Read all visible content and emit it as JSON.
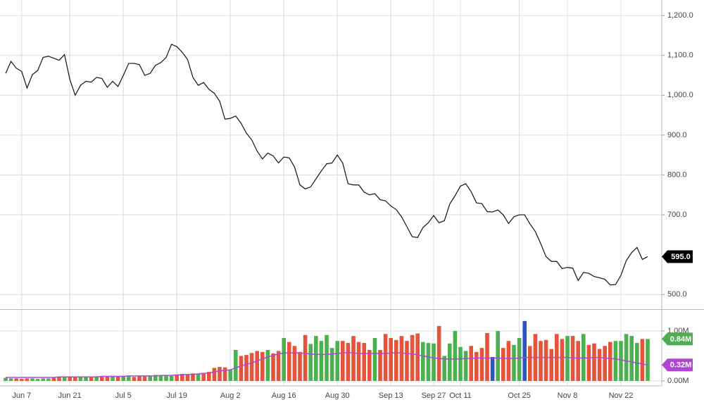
{
  "chart_data": {
    "type": "stock",
    "categories": [
      null,
      null,
      null,
      "Jun 7",
      null,
      null,
      null,
      null,
      null,
      null,
      null,
      null,
      "Jun 21",
      null,
      null,
      null,
      null,
      null,
      null,
      null,
      null,
      null,
      "Jul 5",
      null,
      null,
      null,
      null,
      null,
      null,
      null,
      null,
      null,
      "Jul 19",
      null,
      null,
      null,
      null,
      null,
      null,
      null,
      null,
      null,
      "Aug 2",
      null,
      null,
      null,
      null,
      null,
      null,
      null,
      null,
      null,
      "Aug 16",
      null,
      null,
      null,
      null,
      null,
      null,
      null,
      null,
      null,
      "Aug 30",
      null,
      null,
      null,
      null,
      null,
      null,
      null,
      null,
      null,
      "Sep 13",
      null,
      null,
      null,
      null,
      null,
      null,
      null,
      "Sep 27",
      null,
      null,
      null,
      null,
      "Oct 11",
      null,
      null,
      null,
      null,
      null,
      null,
      null,
      null,
      null,
      null,
      "Oct 25",
      null,
      null,
      null,
      null,
      null,
      null,
      null,
      null,
      "Nov 8",
      null,
      null,
      null,
      null,
      null,
      null,
      null,
      null,
      null,
      "Nov 22",
      null,
      null,
      null,
      null,
      null
    ],
    "price": {
      "color": "#111111",
      "ylim": [
        465,
        1225
      ],
      "yticks": [
        {
          "value": 500,
          "label": "500.0"
        },
        {
          "value": 700,
          "label": "700.0"
        },
        {
          "value": 800,
          "label": "800.0"
        },
        {
          "value": 900,
          "label": "900.0"
        },
        {
          "value": 1000,
          "label": "1,000.0"
        },
        {
          "value": 1100,
          "label": "1,100.0"
        },
        {
          "value": 1200,
          "label": "1,200.0"
        }
      ],
      "last_label": {
        "value": 595,
        "label": "595.0",
        "color": "#000000"
      },
      "values": [
        1055,
        1085,
        1068,
        1060,
        1018,
        1052,
        1062,
        1095,
        1098,
        1093,
        1088,
        1102,
        1040,
        1000,
        1025,
        1035,
        1033,
        1045,
        1042,
        1020,
        1035,
        1022,
        1050,
        1080,
        1080,
        1077,
        1050,
        1055,
        1075,
        1082,
        1095,
        1128,
        1122,
        1108,
        1090,
        1045,
        1025,
        1032,
        1015,
        1005,
        985,
        940,
        942,
        948,
        930,
        905,
        888,
        860,
        840,
        855,
        848,
        830,
        845,
        843,
        820,
        775,
        765,
        770,
        790,
        810,
        828,
        830,
        850,
        830,
        778,
        775,
        775,
        757,
        750,
        753,
        738,
        735,
        722,
        713,
        695,
        670,
        645,
        643,
        668,
        680,
        698,
        680,
        685,
        727,
        748,
        772,
        778,
        758,
        730,
        728,
        708,
        707,
        712,
        700,
        678,
        695,
        700,
        700,
        677,
        658,
        628,
        595,
        583,
        583,
        565,
        568,
        566,
        535,
        555,
        553,
        545,
        542,
        538,
        524,
        525,
        548,
        585,
        605,
        618,
        588,
        595
      ]
    },
    "volume": {
      "ylim": [
        -0.1,
        1.41
      ],
      "yticks": [
        {
          "value": 0,
          "label": "0.00M"
        },
        {
          "value": 1,
          "label": "1.00M"
        }
      ],
      "last_label": {
        "value": 0.84,
        "label": "0.84M",
        "color": "#4caf50"
      },
      "values": [
        0.06,
        0.05,
        0.05,
        0.04,
        0.05,
        0.05,
        0.04,
        0.05,
        0.05,
        0.06,
        0.07,
        0.08,
        0.07,
        0.08,
        0.08,
        0.07,
        0.08,
        0.09,
        0.08,
        0.09,
        0.1,
        0.09,
        0.1,
        0.09,
        0.08,
        0.1,
        0.09,
        0.11,
        0.12,
        0.1,
        0.11,
        0.1,
        0.12,
        0.14,
        0.13,
        0.15,
        0.14,
        0.16,
        0.18,
        0.26,
        0.28,
        0.27,
        0.22,
        0.62,
        0.5,
        0.52,
        0.56,
        0.6,
        0.58,
        0.62,
        0.55,
        0.6,
        0.86,
        0.78,
        0.7,
        0.58,
        0.92,
        0.74,
        0.9,
        0.8,
        0.92,
        0.66,
        0.8,
        0.8,
        0.76,
        0.9,
        0.78,
        0.76,
        0.62,
        0.86,
        0.62,
        0.94,
        0.86,
        0.82,
        0.9,
        0.8,
        0.92,
        0.95,
        0.78,
        0.76,
        0.75,
        1.1,
        0.5,
        0.75,
        1.0,
        0.68,
        0.6,
        0.7,
        0.58,
        0.66,
        0.96,
        0.48,
        1.0,
        0.66,
        0.8,
        0.72,
        0.86,
        1.2,
        0.7,
        0.94,
        0.8,
        0.82,
        0.64,
        0.94,
        0.84,
        0.9,
        0.9,
        0.8,
        0.94,
        0.72,
        0.75,
        0.64,
        0.7,
        0.78,
        0.8,
        0.8,
        0.94,
        0.9,
        0.76,
        0.84,
        0.84
      ],
      "colors": [
        "#4caf50",
        "#4caf50",
        "#e5533b",
        "#e5533b",
        "#e5533b",
        "#4caf50",
        "#4caf50",
        "#4caf50",
        "#4caf50",
        "#e5533b",
        "#e5533b",
        "#4caf50",
        "#e5533b",
        "#e5533b",
        "#4caf50",
        "#4caf50",
        "#e5533b",
        "#4caf50",
        "#e5533b",
        "#e5533b",
        "#4caf50",
        "#e5533b",
        "#4caf50",
        "#4caf50",
        "#e5533b",
        "#e5533b",
        "#e5533b",
        "#4caf50",
        "#4caf50",
        "#4caf50",
        "#4caf50",
        "#4caf50",
        "#e5533b",
        "#e5533b",
        "#e5533b",
        "#e5533b",
        "#4caf50",
        "#e5533b",
        "#e5533b",
        "#e5533b",
        "#e5533b",
        "#e5533b",
        "#4caf50",
        "#4caf50",
        "#e5533b",
        "#e5533b",
        "#e5533b",
        "#e5533b",
        "#e5533b",
        "#4caf50",
        "#e5533b",
        "#e5533b",
        "#4caf50",
        "#e5533b",
        "#e5533b",
        "#e5533b",
        "#e5533b",
        "#4caf50",
        "#4caf50",
        "#4caf50",
        "#4caf50",
        "#4caf50",
        "#4caf50",
        "#e5533b",
        "#e5533b",
        "#e5533b",
        "#e5533b",
        "#e5533b",
        "#e5533b",
        "#4caf50",
        "#e5533b",
        "#e5533b",
        "#e5533b",
        "#e5533b",
        "#e5533b",
        "#e5533b",
        "#e5533b",
        "#e5533b",
        "#4caf50",
        "#4caf50",
        "#4caf50",
        "#e5533b",
        "#4caf50",
        "#4caf50",
        "#4caf50",
        "#4caf50",
        "#4caf50",
        "#e5533b",
        "#e5533b",
        "#e5533b",
        "#e5533b",
        "#2d55c6",
        "#4caf50",
        "#e5533b",
        "#e5533b",
        "#4caf50",
        "#4caf50",
        "#2d55c6",
        "#e5533b",
        "#e5533b",
        "#e5533b",
        "#e5533b",
        "#e5533b",
        "#e5533b",
        "#e5533b",
        "#4caf50",
        "#e5533b",
        "#e5533b",
        "#4caf50",
        "#e5533b",
        "#e5533b",
        "#e5533b",
        "#e5533b",
        "#e5533b",
        "#4caf50",
        "#4caf50",
        "#4caf50",
        "#4caf50",
        "#4caf50",
        "#e5533b",
        "#4caf50"
      ]
    },
    "volume_ma": {
      "color": "#b146d6",
      "last_label": {
        "value": 0.32,
        "label": "0.32M"
      },
      "values": [
        0.07,
        0.07,
        0.07,
        0.07,
        0.07,
        0.07,
        0.07,
        0.07,
        0.07,
        0.07,
        0.08,
        0.08,
        0.08,
        0.08,
        0.08,
        0.08,
        0.08,
        0.08,
        0.09,
        0.09,
        0.09,
        0.09,
        0.09,
        0.1,
        0.1,
        0.1,
        0.1,
        0.1,
        0.1,
        0.11,
        0.11,
        0.11,
        0.12,
        0.12,
        0.13,
        0.13,
        0.14,
        0.15,
        0.16,
        0.18,
        0.2,
        0.21,
        0.22,
        0.26,
        0.3,
        0.33,
        0.36,
        0.4,
        0.44,
        0.48,
        0.51,
        0.54,
        0.56,
        0.56,
        0.56,
        0.56,
        0.55,
        0.54,
        0.53,
        0.53,
        0.53,
        0.54,
        0.55,
        0.56,
        0.57,
        0.56,
        0.55,
        0.55,
        0.55,
        0.55,
        0.55,
        0.55,
        0.56,
        0.56,
        0.56,
        0.55,
        0.54,
        0.52,
        0.5,
        0.48,
        0.46,
        0.45,
        0.44,
        0.44,
        0.44,
        0.44,
        0.45,
        0.45,
        0.46,
        0.46,
        0.46,
        0.46,
        0.46,
        0.45,
        0.45,
        0.45,
        0.46,
        0.47,
        0.47,
        0.47,
        0.47,
        0.47,
        0.47,
        0.47,
        0.47,
        0.47,
        0.46,
        0.46,
        0.46,
        0.46,
        0.47,
        0.47,
        0.46,
        0.45,
        0.44,
        0.42,
        0.4,
        0.38,
        0.36,
        0.34,
        0.32
      ]
    },
    "grid": true
  }
}
